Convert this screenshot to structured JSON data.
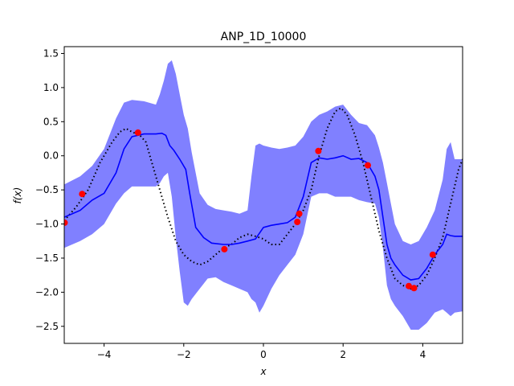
{
  "chart_data": {
    "type": "line",
    "title": "ANP_1D_10000",
    "xlabel": "x",
    "ylabel": "f(x)",
    "xlim": [
      -5,
      5
    ],
    "ylim": [
      -2.75,
      1.6
    ],
    "xticks": [
      -4,
      -2,
      0,
      2,
      4
    ],
    "yticks": [
      -2.5,
      -2.0,
      -1.5,
      -1.0,
      -0.5,
      0.0,
      0.5,
      1.0,
      1.5
    ],
    "xtick_labels": [
      "−4",
      "−2",
      "0",
      "2",
      "4"
    ],
    "ytick_labels": [
      "−2.5",
      "−2.0",
      "−1.5",
      "−1.0",
      "−0.5",
      "0.0",
      "0.5",
      "1.0",
      "1.5"
    ],
    "grid": false,
    "legend": "none",
    "colors": {
      "mean": "#0000ff",
      "band": "#8080ff",
      "truth": "#000000",
      "context": "#ff0000"
    },
    "series": [
      {
        "role": "predictive-mean",
        "style": "solid",
        "x": [
          -5.0,
          -4.6,
          -4.3,
          -4.0,
          -3.7,
          -3.5,
          -3.3,
          -3.0,
          -2.7,
          -2.55,
          -2.45,
          -2.35,
          -2.25,
          -2.1,
          -1.95,
          -1.85,
          -1.7,
          -1.5,
          -1.3,
          -1.0,
          -0.8,
          -0.6,
          -0.4,
          -0.2,
          0.0,
          0.2,
          0.4,
          0.6,
          0.8,
          1.0,
          1.2,
          1.4,
          1.6,
          1.8,
          2.0,
          2.2,
          2.4,
          2.6,
          2.8,
          2.9,
          3.0,
          3.1,
          3.2,
          3.3,
          3.5,
          3.7,
          3.9,
          4.1,
          4.3,
          4.5,
          4.6,
          4.7,
          4.8,
          5.0
        ],
        "y": [
          -0.9,
          -0.8,
          -0.65,
          -0.55,
          -0.25,
          0.1,
          0.28,
          0.32,
          0.32,
          0.33,
          0.3,
          0.15,
          0.08,
          -0.05,
          -0.2,
          -0.55,
          -1.05,
          -1.2,
          -1.28,
          -1.3,
          -1.3,
          -1.28,
          -1.25,
          -1.22,
          -1.05,
          -1.02,
          -1.0,
          -0.98,
          -0.9,
          -0.6,
          -0.1,
          -0.03,
          -0.05,
          -0.03,
          0.0,
          -0.05,
          -0.04,
          -0.1,
          -0.3,
          -0.5,
          -0.9,
          -1.3,
          -1.5,
          -1.6,
          -1.75,
          -1.82,
          -1.8,
          -1.65,
          -1.45,
          -1.3,
          -1.15,
          -1.17,
          -1.18,
          -1.18
        ]
      },
      {
        "role": "uncertainty-band",
        "style": "fill",
        "x": [
          -5.0,
          -4.6,
          -4.3,
          -4.0,
          -3.7,
          -3.5,
          -3.3,
          -3.0,
          -2.7,
          -2.6,
          -2.5,
          -2.4,
          -2.3,
          -2.2,
          -2.1,
          -2.0,
          -1.9,
          -1.8,
          -1.6,
          -1.4,
          -1.2,
          -1.0,
          -0.8,
          -0.6,
          -0.4,
          -0.3,
          -0.2,
          -0.1,
          0.0,
          0.2,
          0.4,
          0.6,
          0.8,
          1.0,
          1.2,
          1.4,
          1.6,
          1.8,
          2.0,
          2.2,
          2.4,
          2.6,
          2.8,
          2.9,
          3.0,
          3.1,
          3.2,
          3.3,
          3.5,
          3.7,
          3.9,
          4.1,
          4.3,
          4.5,
          4.6,
          4.7,
          4.8,
          5.0
        ],
        "upper": [
          -0.42,
          -0.3,
          -0.15,
          0.1,
          0.55,
          0.78,
          0.82,
          0.8,
          0.75,
          0.9,
          1.1,
          1.35,
          1.4,
          1.2,
          0.9,
          0.6,
          0.4,
          0.05,
          -0.55,
          -0.72,
          -0.78,
          -0.8,
          -0.82,
          -0.85,
          -0.8,
          -0.3,
          0.15,
          0.18,
          0.15,
          0.12,
          0.1,
          0.12,
          0.15,
          0.28,
          0.5,
          0.6,
          0.65,
          0.72,
          0.75,
          0.6,
          0.48,
          0.45,
          0.3,
          0.12,
          -0.1,
          -0.4,
          -0.7,
          -1.0,
          -1.25,
          -1.3,
          -1.25,
          -1.05,
          -0.8,
          -0.35,
          0.1,
          0.2,
          -0.05,
          -0.05
        ],
        "lower": [
          -1.35,
          -1.25,
          -1.15,
          -1.0,
          -0.7,
          -0.55,
          -0.45,
          -0.45,
          -0.45,
          -0.4,
          -0.3,
          -0.25,
          -0.6,
          -1.2,
          -1.7,
          -2.15,
          -2.2,
          -2.1,
          -1.95,
          -1.8,
          -1.78,
          -1.85,
          -1.9,
          -1.95,
          -2.0,
          -2.1,
          -2.15,
          -2.3,
          -2.2,
          -1.95,
          -1.75,
          -1.6,
          -1.45,
          -1.15,
          -0.6,
          -0.55,
          -0.55,
          -0.6,
          -0.6,
          -0.6,
          -0.65,
          -0.68,
          -0.7,
          -0.9,
          -1.35,
          -1.9,
          -2.1,
          -2.2,
          -2.35,
          -2.55,
          -2.55,
          -2.45,
          -2.3,
          -2.25,
          -2.3,
          -2.35,
          -2.3,
          -2.28
        ]
      },
      {
        "role": "ground-truth",
        "style": "dotted",
        "x": [
          -5.0,
          -4.7,
          -4.4,
          -4.1,
          -3.8,
          -3.6,
          -3.45,
          -3.3,
          -3.1,
          -2.95,
          -2.8,
          -2.6,
          -2.4,
          -2.2,
          -2.0,
          -1.8,
          -1.6,
          -1.4,
          -1.2,
          -1.0,
          -0.8,
          -0.6,
          -0.4,
          -0.2,
          0.0,
          0.2,
          0.4,
          0.6,
          0.8,
          1.0,
          1.2,
          1.4,
          1.6,
          1.8,
          1.95,
          2.1,
          2.3,
          2.5,
          2.7,
          2.9,
          3.1,
          3.3,
          3.5,
          3.7,
          3.9,
          4.1,
          4.3,
          4.5,
          4.7,
          4.9,
          5.0
        ],
        "y": [
          -0.95,
          -0.75,
          -0.5,
          -0.1,
          0.2,
          0.35,
          0.4,
          0.35,
          0.3,
          0.2,
          -0.1,
          -0.5,
          -0.9,
          -1.25,
          -1.45,
          -1.55,
          -1.6,
          -1.55,
          -1.45,
          -1.35,
          -1.3,
          -1.2,
          -1.15,
          -1.18,
          -1.22,
          -1.3,
          -1.3,
          -1.15,
          -1.0,
          -0.8,
          -0.5,
          0.0,
          0.4,
          0.65,
          0.7,
          0.6,
          0.3,
          -0.1,
          -0.6,
          -1.1,
          -1.5,
          -1.8,
          -1.9,
          -1.95,
          -1.9,
          -1.75,
          -1.5,
          -1.2,
          -0.7,
          -0.2,
          -0.05
        ]
      }
    ],
    "context_points": {
      "role": "context-points",
      "x": [
        -4.99,
        -4.55,
        -3.15,
        -0.98,
        0.85,
        0.9,
        1.38,
        2.62,
        3.65,
        3.78,
        4.25
      ],
      "y": [
        -0.98,
        -0.56,
        0.34,
        -1.37,
        -0.97,
        -0.85,
        0.07,
        -0.14,
        -1.91,
        -1.94,
        -1.45
      ]
    }
  }
}
